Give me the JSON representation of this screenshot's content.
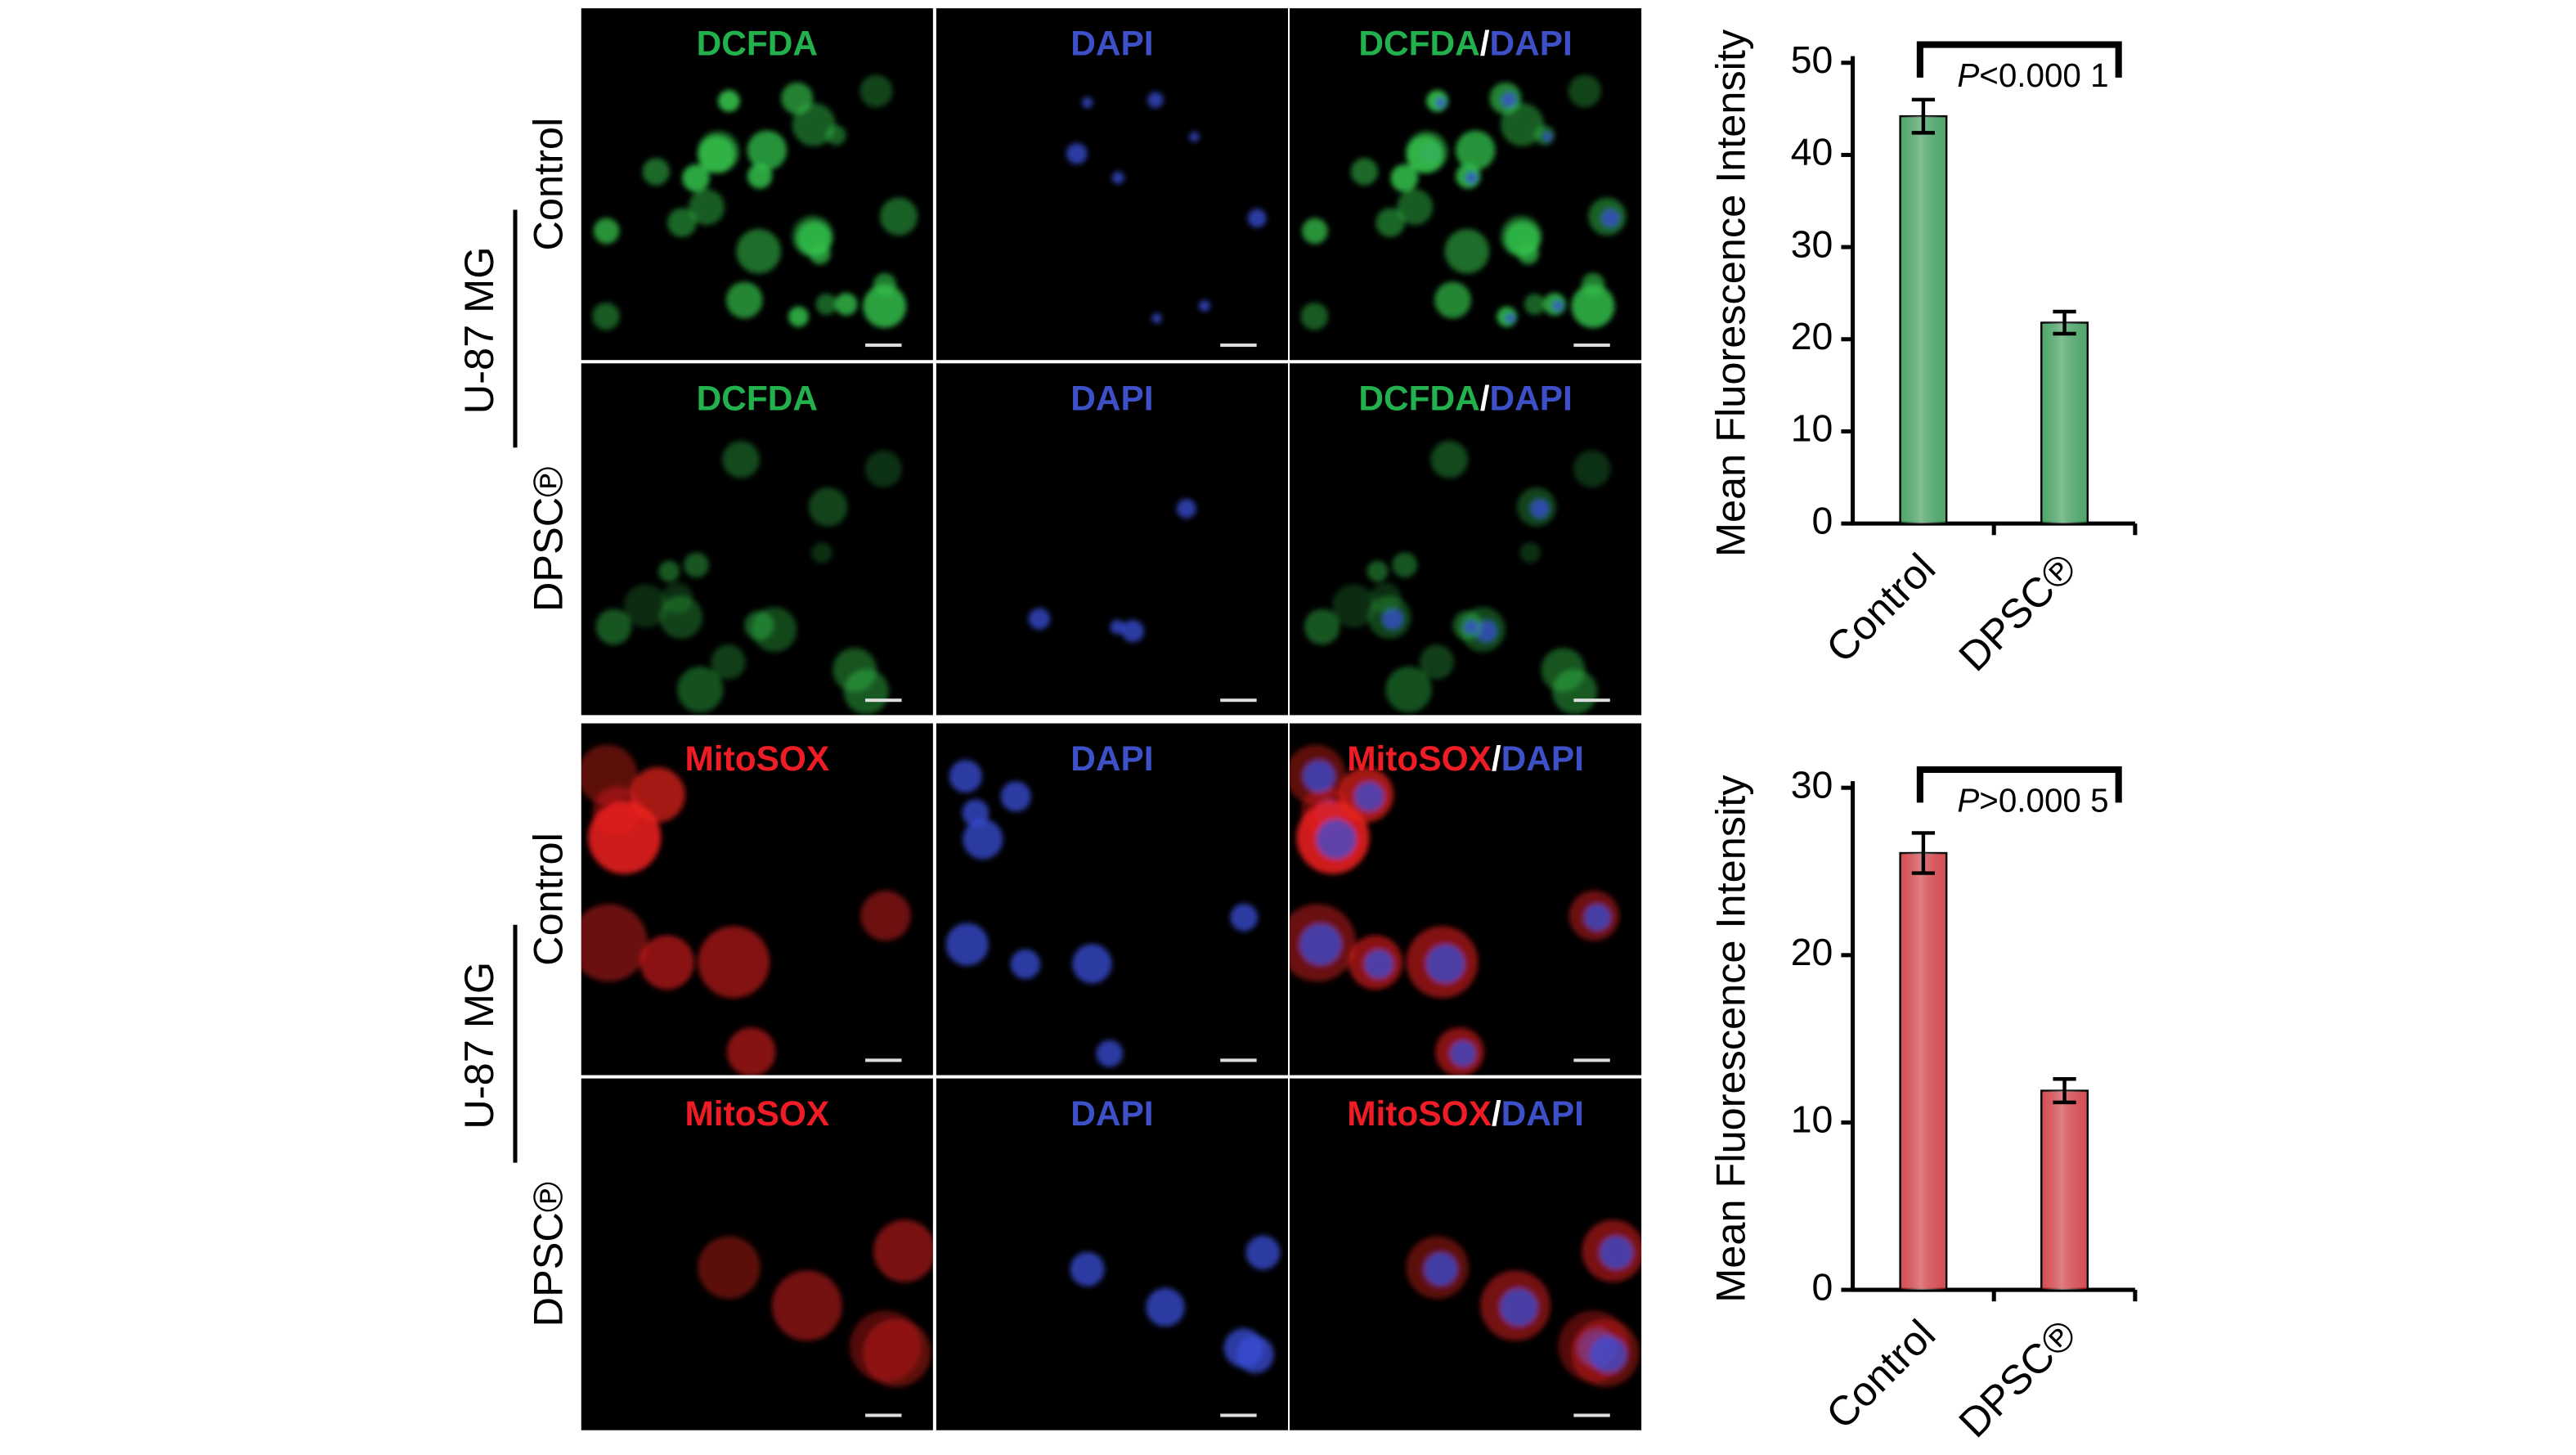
{
  "microscopy": [
    {
      "group": "U-87 MG",
      "rows": [
        "Control",
        "DPSC℗"
      ],
      "columns": [
        [
          "DCFDA"
        ],
        [
          "DAPI"
        ],
        [
          "DCFDA",
          "/",
          "DAPI"
        ]
      ]
    },
    {
      "group": "U-87 MG",
      "rows": [
        "Control",
        "DPSC℗"
      ],
      "columns": [
        [
          "MitoSOX"
        ],
        [
          "DAPI"
        ],
        [
          "MitoSOX",
          "/",
          "DAPI"
        ]
      ]
    }
  ],
  "label_colors": {
    "DCFDA": "#22b14c",
    "DAPI": "#3d50c8",
    "MitoSOX": "#ee1c24",
    "/": "#ffffff"
  },
  "chart_data": [
    {
      "type": "bar",
      "y_label": "Mean Fluorescence Intensity",
      "categories": [
        "Control",
        "DPSC℗"
      ],
      "values": [
        44.2,
        21.8
      ],
      "errors": [
        1.8,
        1.2
      ],
      "color": "#17883a",
      "ylim": [
        0,
        50
      ],
      "yticks": [
        0,
        10,
        20,
        30,
        40,
        50
      ],
      "annotation": [
        "P",
        "<0.000 1"
      ]
    },
    {
      "type": "bar",
      "y_label": "Mean Fluorescence Intensity",
      "categories": [
        "Control",
        "DPSC℗"
      ],
      "values": [
        26.1,
        11.9
      ],
      "errors": [
        1.2,
        0.7
      ],
      "color": "#c4141c",
      "ylim": [
        0,
        30
      ],
      "yticks": [
        0,
        10,
        20,
        30
      ],
      "annotation": [
        "P",
        ">0.000 5"
      ]
    }
  ]
}
